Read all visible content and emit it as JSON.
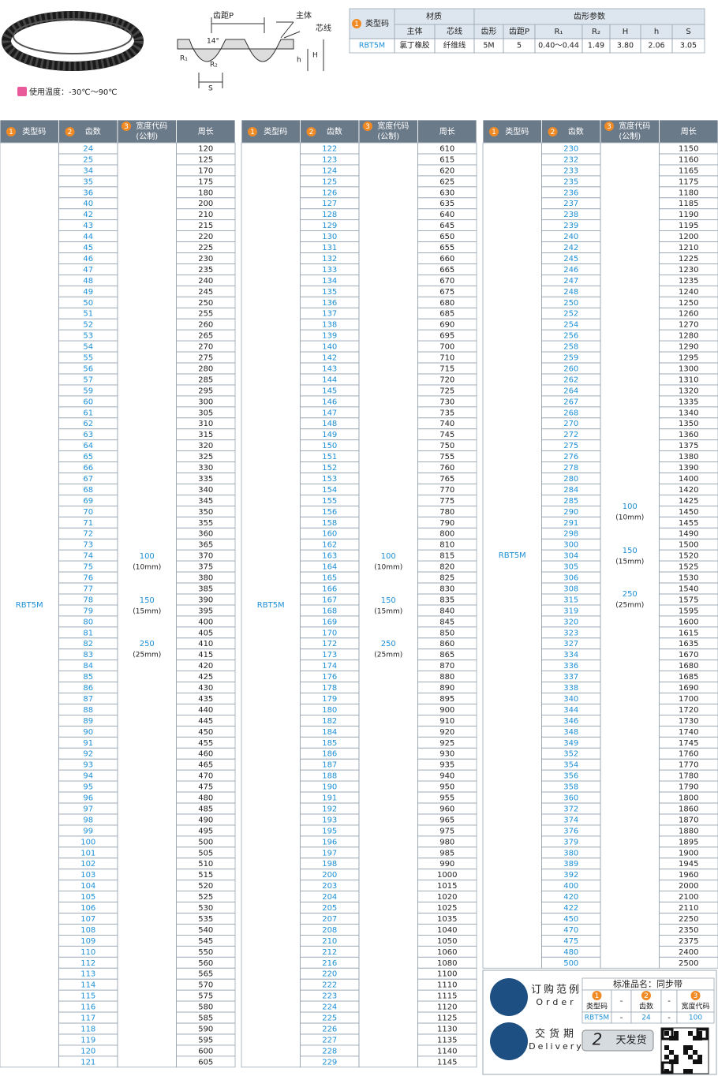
{
  "temperature": "使用温度：-30℃～90℃",
  "diagram": {
    "pitch": "齿距P",
    "body": "主体",
    "cord": "芯线",
    "angle": "14°",
    "r1": "R₁",
    "r2": "R₂",
    "h_small": "h",
    "h_big": "H",
    "s": "S"
  },
  "spec_table": {
    "type_header": {
      "num": "1",
      "label": "类型码"
    },
    "material": "材质",
    "material_cols": [
      "主体",
      "芯线"
    ],
    "tooth": "齿形参数",
    "tooth_cols": [
      "齿形",
      "齿距P",
      "R₁",
      "R₂",
      "H",
      "h",
      "S"
    ],
    "row": [
      "RBT5M",
      "氯丁橡胶",
      "纤维线",
      "5M",
      "5",
      "0.40～0.44",
      "1.49",
      "3.80",
      "2.06",
      "3.05"
    ]
  },
  "tables": [
    {
      "headers": [
        {
          "num": "1",
          "label": "类型码"
        },
        {
          "num": "2",
          "label": "齿数"
        },
        {
          "num": "3",
          "label": "宽度代码",
          "sub": "(公制)"
        },
        {
          "label": "周长"
        }
      ],
      "type_code": "RBT5M",
      "widths": [
        {
          "code": "100",
          "mm": "(10mm)"
        },
        {
          "code": "150",
          "mm": "(15mm)"
        },
        {
          "code": "250",
          "mm": "(25mm)"
        }
      ],
      "teeth": [
        24,
        25,
        34,
        35,
        36,
        40,
        42,
        43,
        44,
        45,
        46,
        47,
        48,
        49,
        50,
        51,
        52,
        53,
        54,
        55,
        56,
        57,
        59,
        60,
        61,
        62,
        63,
        64,
        65,
        66,
        67,
        68,
        69,
        70,
        71,
        72,
        73,
        74,
        75,
        76,
        77,
        78,
        79,
        80,
        81,
        82,
        83,
        84,
        85,
        86,
        87,
        88,
        89,
        90,
        91,
        92,
        93,
        94,
        95,
        96,
        97,
        98,
        99,
        100,
        101,
        102,
        103,
        104,
        105,
        106,
        107,
        108,
        109,
        110,
        112,
        113,
        114,
        115,
        116,
        117,
        118,
        119,
        120,
        121
      ],
      "perimeter": [
        120,
        125,
        170,
        175,
        180,
        200,
        210,
        215,
        220,
        225,
        230,
        235,
        240,
        245,
        250,
        255,
        260,
        265,
        270,
        275,
        280,
        285,
        295,
        300,
        305,
        310,
        315,
        320,
        325,
        330,
        335,
        340,
        345,
        350,
        355,
        360,
        365,
        370,
        375,
        380,
        385,
        390,
        395,
        400,
        405,
        410,
        415,
        420,
        425,
        430,
        435,
        440,
        445,
        450,
        455,
        460,
        465,
        470,
        475,
        480,
        485,
        490,
        495,
        500,
        505,
        510,
        515,
        520,
        525,
        530,
        535,
        540,
        545,
        550,
        560,
        565,
        570,
        575,
        580,
        585,
        590,
        595,
        600,
        605
      ]
    },
    {
      "headers": [
        {
          "num": "1",
          "label": "类型码"
        },
        {
          "num": "2",
          "label": "齿数"
        },
        {
          "num": "3",
          "label": "宽度代码",
          "sub": "(公制)"
        },
        {
          "label": "周长"
        }
      ],
      "type_code": "RBT5M",
      "widths": [
        {
          "code": "100",
          "mm": "(10mm)"
        },
        {
          "code": "150",
          "mm": "(15mm)"
        },
        {
          "code": "250",
          "mm": "(25mm)"
        }
      ],
      "teeth": [
        122,
        123,
        124,
        125,
        126,
        127,
        128,
        129,
        130,
        131,
        132,
        133,
        134,
        135,
        136,
        137,
        138,
        139,
        140,
        142,
        143,
        144,
        145,
        146,
        147,
        148,
        149,
        150,
        151,
        152,
        153,
        154,
        155,
        156,
        158,
        160,
        162,
        163,
        164,
        165,
        166,
        167,
        168,
        169,
        170,
        172,
        173,
        174,
        176,
        178,
        179,
        180,
        182,
        184,
        185,
        186,
        187,
        188,
        190,
        191,
        192,
        193,
        195,
        196,
        197,
        198,
        200,
        203,
        204,
        205,
        207,
        208,
        210,
        212,
        216,
        220,
        222,
        223,
        224,
        225,
        226,
        227,
        228,
        229
      ],
      "perimeter": [
        610,
        615,
        620,
        625,
        630,
        635,
        640,
        645,
        650,
        655,
        660,
        665,
        670,
        675,
        680,
        685,
        690,
        695,
        700,
        710,
        715,
        720,
        725,
        730,
        735,
        740,
        745,
        750,
        755,
        760,
        765,
        770,
        775,
        780,
        790,
        800,
        810,
        815,
        820,
        825,
        830,
        835,
        840,
        845,
        850,
        860,
        865,
        870,
        880,
        890,
        895,
        900,
        910,
        920,
        925,
        930,
        935,
        940,
        950,
        955,
        960,
        965,
        975,
        980,
        985,
        990,
        1000,
        1015,
        1020,
        1025,
        1035,
        1040,
        1050,
        1060,
        1080,
        1100,
        1110,
        1115,
        1120,
        1125,
        1130,
        1135,
        1140,
        1145
      ]
    },
    {
      "headers": [
        {
          "num": "1",
          "label": "类型码"
        },
        {
          "num": "2",
          "label": "齿数"
        },
        {
          "num": "3",
          "label": "宽度代码",
          "sub": "(公制)"
        },
        {
          "label": "周长"
        }
      ],
      "type_code": "RBT5M",
      "widths": [
        {
          "code": "100",
          "mm": "(10mm)"
        },
        {
          "code": "150",
          "mm": "(15mm)"
        },
        {
          "code": "250",
          "mm": "(25mm)"
        }
      ],
      "teeth": [
        230,
        232,
        233,
        235,
        236,
        237,
        238,
        239,
        240,
        242,
        245,
        246,
        247,
        248,
        250,
        252,
        254,
        256,
        258,
        259,
        260,
        262,
        264,
        267,
        268,
        270,
        272,
        275,
        276,
        278,
        280,
        284,
        285,
        290,
        291,
        298,
        300,
        304,
        305,
        306,
        308,
        315,
        319,
        320,
        323,
        327,
        334,
        336,
        337,
        338,
        340,
        344,
        346,
        348,
        349,
        352,
        354,
        356,
        358,
        360,
        372,
        374,
        376,
        379,
        380,
        389,
        392,
        400,
        420,
        422,
        450,
        470,
        475,
        480,
        500
      ],
      "perimeter": [
        1150,
        1160,
        1165,
        1175,
        1180,
        1185,
        1190,
        1195,
        1200,
        1210,
        1225,
        1230,
        1235,
        1240,
        1250,
        1260,
        1270,
        1280,
        1290,
        1295,
        1300,
        1310,
        1320,
        1335,
        1340,
        1350,
        1360,
        1375,
        1380,
        1390,
        1400,
        1420,
        1425,
        1450,
        1455,
        1490,
        1500,
        1520,
        1525,
        1530,
        1540,
        1575,
        1595,
        1600,
        1615,
        1635,
        1670,
        1680,
        1685,
        1690,
        1700,
        1720,
        1730,
        1740,
        1745,
        1760,
        1770,
        1780,
        1790,
        1800,
        1860,
        1870,
        1880,
        1895,
        1900,
        1945,
        1960,
        2000,
        2100,
        2110,
        2250,
        2350,
        2375,
        2400,
        2500
      ]
    }
  ],
  "order": {
    "title": "订购范例",
    "title_en": "Order",
    "name": "标准品名：同步带",
    "cols": [
      {
        "num": "1",
        "label": "类型码"
      },
      {
        "num": "2",
        "label": "齿数"
      },
      {
        "num": "3",
        "label": "宽度代码"
      }
    ],
    "values": [
      "RBT5M",
      "24",
      "100"
    ],
    "dash": "-",
    "delivery": "交货期",
    "delivery_en": "Delivery",
    "days": "2",
    "days_text": "天发货"
  }
}
